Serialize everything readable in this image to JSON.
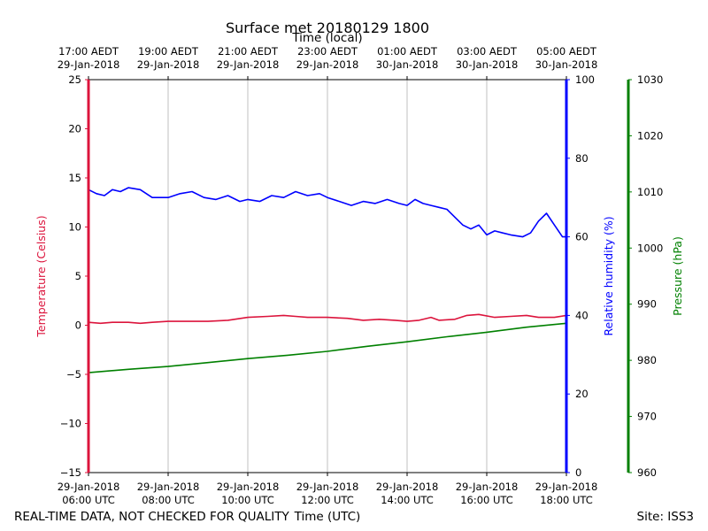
{
  "chart_data": {
    "type": "line",
    "title": "Surface met 20180129 1800",
    "top_xlabel": "Time (local)",
    "xlabel": "Time (UTC)",
    "footer_left": "REAL-TIME DATA, NOT CHECKED FOR QUALITY",
    "footer_right": "Site: ISS3",
    "x_range_hours_utc": [
      6,
      18
    ],
    "local_ticks": [
      {
        "line1": "17:00 AEDT",
        "line2": "29-Jan-2018"
      },
      {
        "line1": "19:00 AEDT",
        "line2": "29-Jan-2018"
      },
      {
        "line1": "21:00 AEDT",
        "line2": "29-Jan-2018"
      },
      {
        "line1": "23:00 AEDT",
        "line2": "29-Jan-2018"
      },
      {
        "line1": "01:00 AEDT",
        "line2": "30-Jan-2018"
      },
      {
        "line1": "03:00 AEDT",
        "line2": "30-Jan-2018"
      },
      {
        "line1": "05:00 AEDT",
        "line2": "30-Jan-2018"
      }
    ],
    "utc_ticks": [
      {
        "line1": "29-Jan-2018",
        "line2": "06:00 UTC"
      },
      {
        "line1": "29-Jan-2018",
        "line2": "08:00 UTC"
      },
      {
        "line1": "29-Jan-2018",
        "line2": "10:00 UTC"
      },
      {
        "line1": "29-Jan-2018",
        "line2": "12:00 UTC"
      },
      {
        "line1": "29-Jan-2018",
        "line2": "14:00 UTC"
      },
      {
        "line1": "29-Jan-2018",
        "line2": "16:00 UTC"
      },
      {
        "line1": "29-Jan-2018",
        "line2": "18:00 UTC"
      }
    ],
    "axes": {
      "temperature": {
        "label": "Temperature (Celsius)",
        "range": [
          -15,
          25
        ],
        "ticks": [
          "25",
          "20",
          "15",
          "10",
          "5",
          "0",
          "−5",
          "−10",
          "−15"
        ],
        "color": "#dc143c"
      },
      "humidity": {
        "label": "Relative humidity (%)",
        "range": [
          0,
          100
        ],
        "ticks": [
          "100",
          "80",
          "60",
          "40",
          "20",
          "0"
        ],
        "color": "#0000ff"
      },
      "pressure": {
        "label": "Pressure (hPa)",
        "range": [
          960,
          1030
        ],
        "ticks": [
          "1030",
          "1020",
          "1010",
          "1000",
          "990",
          "980",
          "970",
          "960"
        ],
        "color": "#008000"
      }
    },
    "series": [
      {
        "name": "Temperature",
        "axis": "temperature",
        "color": "#dc143c",
        "points": [
          [
            6,
            0.3
          ],
          [
            6.3,
            0.2
          ],
          [
            6.6,
            0.3
          ],
          [
            7,
            0.3
          ],
          [
            7.3,
            0.2
          ],
          [
            7.6,
            0.3
          ],
          [
            8,
            0.4
          ],
          [
            8.5,
            0.4
          ],
          [
            9,
            0.4
          ],
          [
            9.5,
            0.5
          ],
          [
            10,
            0.8
          ],
          [
            10.5,
            0.9
          ],
          [
            10.9,
            1.0
          ],
          [
            11.2,
            0.9
          ],
          [
            11.5,
            0.8
          ],
          [
            12,
            0.8
          ],
          [
            12.5,
            0.7
          ],
          [
            12.9,
            0.5
          ],
          [
            13.3,
            0.6
          ],
          [
            13.7,
            0.5
          ],
          [
            14,
            0.4
          ],
          [
            14.3,
            0.5
          ],
          [
            14.6,
            0.8
          ],
          [
            14.8,
            0.5
          ],
          [
            15.2,
            0.6
          ],
          [
            15.5,
            1.0
          ],
          [
            15.8,
            1.1
          ],
          [
            16.2,
            0.8
          ],
          [
            16.6,
            0.9
          ],
          [
            17,
            1.0
          ],
          [
            17.3,
            0.8
          ],
          [
            17.7,
            0.8
          ],
          [
            18,
            1.0
          ]
        ]
      },
      {
        "name": "Relative humidity",
        "axis": "humidity",
        "color": "#0000ff",
        "points": [
          [
            6,
            72
          ],
          [
            6.2,
            71
          ],
          [
            6.4,
            70.5
          ],
          [
            6.6,
            72
          ],
          [
            6.8,
            71.5
          ],
          [
            7,
            72.5
          ],
          [
            7.3,
            72
          ],
          [
            7.6,
            70
          ],
          [
            8,
            70
          ],
          [
            8.3,
            71
          ],
          [
            8.6,
            71.5
          ],
          [
            8.9,
            70
          ],
          [
            9.2,
            69.5
          ],
          [
            9.5,
            70.5
          ],
          [
            9.8,
            69
          ],
          [
            10,
            69.5
          ],
          [
            10.3,
            69
          ],
          [
            10.6,
            70.5
          ],
          [
            10.9,
            70
          ],
          [
            11.2,
            71.5
          ],
          [
            11.5,
            70.5
          ],
          [
            11.8,
            71
          ],
          [
            12,
            70
          ],
          [
            12.3,
            69
          ],
          [
            12.6,
            68
          ],
          [
            12.9,
            69
          ],
          [
            13.2,
            68.5
          ],
          [
            13.5,
            69.5
          ],
          [
            13.8,
            68.5
          ],
          [
            14.0,
            68
          ],
          [
            14.2,
            69.5
          ],
          [
            14.4,
            68.5
          ],
          [
            14.6,
            68
          ],
          [
            14.8,
            67.5
          ],
          [
            15,
            67
          ],
          [
            15.2,
            65
          ],
          [
            15.4,
            63
          ],
          [
            15.6,
            62
          ],
          [
            15.8,
            63
          ],
          [
            16,
            60.5
          ],
          [
            16.2,
            61.5
          ],
          [
            16.4,
            61
          ],
          [
            16.6,
            60.5
          ],
          [
            16.9,
            60
          ],
          [
            17.1,
            61
          ],
          [
            17.3,
            64
          ],
          [
            17.5,
            66
          ],
          [
            17.7,
            63
          ],
          [
            17.9,
            60
          ],
          [
            18,
            60
          ]
        ]
      },
      {
        "name": "Pressure",
        "axis": "pressure",
        "color": "#008000",
        "points": [
          [
            6,
            977.8
          ],
          [
            7,
            978.4
          ],
          [
            8,
            978.9
          ],
          [
            9,
            979.6
          ],
          [
            10,
            980.3
          ],
          [
            11,
            980.9
          ],
          [
            12,
            981.6
          ],
          [
            13,
            982.5
          ],
          [
            14,
            983.3
          ],
          [
            15,
            984.2
          ],
          [
            16,
            985
          ],
          [
            17,
            985.9
          ],
          [
            18,
            986.6
          ]
        ]
      }
    ]
  }
}
